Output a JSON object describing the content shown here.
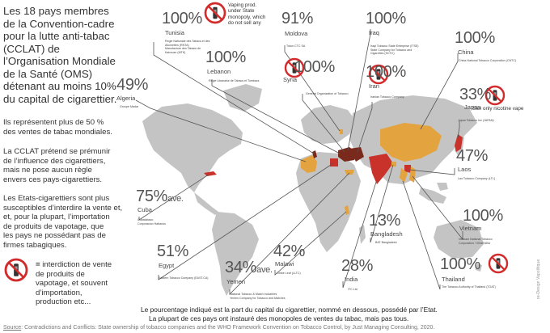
{
  "intro": {
    "lines": [
      "Les 18 pays membres",
      "de la Convention-cadre",
      "pour la lutte anti-tabac",
      "(CCLAT) de",
      "l’Organisation Mondiale",
      "de la Santé (OMS)",
      "détenant au moins 10%",
      "du capital de cigarettier."
    ]
  },
  "paragraph2": {
    "lines": [
      "Ils représentent  plus de 50 %",
      "des ventes de tabac mondiales."
    ]
  },
  "paragraph3": {
    "lines": [
      "La CCLAT prétend se prémunir",
      "de l’influence des cigarettiers,",
      "mais ne pose aucun règle",
      "envers ces pays-cigarettiers."
    ]
  },
  "paragraph4": {
    "lines": [
      "Les Etats-cigarettiers sont plus",
      "susceptibles d’interdire la vente et,",
      "et, pour la plupart, l’importation",
      "de produits de vapotage, que",
      "les pays ne possédant pas de",
      "firmes tabagiques."
    ]
  },
  "legend": {
    "equals": "=",
    "line1": " interdiction de vente",
    "rest": [
      "de produits de",
      "vapotage, et souvent",
      "d’importation,",
      "production etc..."
    ]
  },
  "countries": [
    {
      "name": "Tunisia",
      "pct": "100%",
      "suffix": "",
      "firms": [
        "Regie Nationale des Tabacs et des",
        "Allumettes (RNTA)",
        "Manufacture des Tabacs de",
        "Kairouan (MTK)"
      ]
    },
    {
      "name": "Moldova",
      "pct": "91%",
      "suffix": "",
      "firms": [
        "Tutun CTC SA"
      ]
    },
    {
      "name": "Iraq",
      "pct": "100%",
      "suffix": "",
      "firms": [
        "Iraqi Tobacco State Enterprise (ITSE)",
        "State Company for Tobacco and",
        "Cigarettes (SCTC)"
      ]
    },
    {
      "name": "China",
      "pct": "100%",
      "suffix": "",
      "firms": [
        "China National Tobacco Corporation (CNTC)"
      ]
    },
    {
      "name": "Algeria",
      "pct": "49%",
      "suffix": "",
      "firms": [
        "Groupe Madar"
      ]
    },
    {
      "name": "Lebanon",
      "pct": "100%",
      "suffix": "",
      "firms": [
        "Regie Libanaise de Tabacs et Tombacs"
      ]
    },
    {
      "name": "Syria",
      "pct": "100%",
      "suffix": "",
      "firms": [
        "General Organization of Tobacco"
      ]
    },
    {
      "name": "Iran",
      "pct": "100%",
      "suffix": "",
      "firms": [
        "Iranian Tobacco Company"
      ]
    },
    {
      "name": "Japan",
      "pct": "33%",
      "suffix": "",
      "firms": [
        "Japan Tobacco Inc (JAPAN)"
      ]
    },
    {
      "name": "Laos",
      "pct": "47%",
      "suffix": "",
      "firms": [
        "Lao Tobacco Company (LTL)"
      ]
    },
    {
      "name": "Cuba",
      "pct": "75%",
      "suffix": "ave.",
      "firms": [
        "Cubatabaco",
        "Corporacion Habanos"
      ]
    },
    {
      "name": "Bangladesh",
      "pct": "13%",
      "suffix": "",
      "firms": [
        "BAT Bangladesh"
      ]
    },
    {
      "name": "Vietnam",
      "pct": "100%",
      "suffix": "",
      "firms": [
        "Vietnam National Tobacco",
        "Corporation / VINATABA"
      ]
    },
    {
      "name": "Egypt",
      "pct": "51%",
      "suffix": "",
      "firms": [
        "Eastern Tobacco Company (EAST.CA)"
      ]
    },
    {
      "name": "Malawi",
      "pct": "42%",
      "suffix": "",
      "firms": [
        "Limbe Leaf (LLTC)"
      ]
    },
    {
      "name": "Yemen",
      "pct": "34%",
      "suffix": "ave.",
      "firms": [
        "National Tobacco & Match Industries",
        "Yemen Company for Tobacco and Matches"
      ]
    },
    {
      "name": "India",
      "pct": "28%",
      "suffix": "",
      "firms": [
        "ITC Ltd"
      ]
    },
    {
      "name": "Thailand",
      "pct": "100%",
      "suffix": "",
      "firms": [
        "The Tobacco Authority of Thailand (TOAT)"
      ]
    }
  ],
  "notes": {
    "vaping_state": [
      "Vaping prod.",
      "under State",
      "monopoly, which",
      "do not sell any"
    ],
    "japan_ban": "Ban only nicotine vape"
  },
  "bottom": {
    "line1": "Le pourcentage indiqué est la part du capital du cigarettier, nommé en dessous, possédé par l’Etat.",
    "line2": "La plupart de ces pays ont instauré des monopoles de ventes du tabac, mais pas tous."
  },
  "source": {
    "label": "Source",
    "text": ": Contradictions and Conflicts: State ownership of tobacco companies and the WHO Framework Convention on Tobacco Control, by Just Managing Consulting, 2020."
  },
  "credit": "re-Design Vapolitique",
  "colors": {
    "map_land": "#c2c2c2",
    "highlight_orange": "#e3a33f",
    "highlight_red": "#c8322b",
    "highlight_brown": "#7a2a1c",
    "line": "#555555",
    "ban_red": "#d22b2b"
  }
}
